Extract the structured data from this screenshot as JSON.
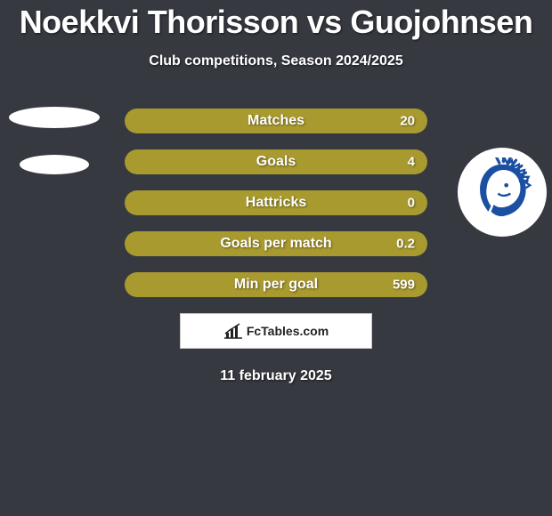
{
  "title": "Noekkvi Thorisson vs Guojohnsen",
  "subtitle": "Club competitions, Season 2024/2025",
  "bar_color": "#a99a2f",
  "bar_secondary_color": "#363940",
  "text_color": "#ffffff",
  "background_color": "#363940",
  "stats": [
    {
      "label": "Matches",
      "value": "20",
      "right_fill": 0.0
    },
    {
      "label": "Goals",
      "value": "4",
      "right_fill": 0.0
    },
    {
      "label": "Hattricks",
      "value": "0",
      "right_fill": 0.0
    },
    {
      "label": "Goals per match",
      "value": "0.2",
      "right_fill": 0.0
    },
    {
      "label": "Min per goal",
      "value": "599",
      "right_fill": 0.0
    }
  ],
  "footer_brand": "FcTables.com",
  "date": "11 february 2025",
  "badge_fg": "#1b4fa2",
  "badge_bg": "#ffffff"
}
